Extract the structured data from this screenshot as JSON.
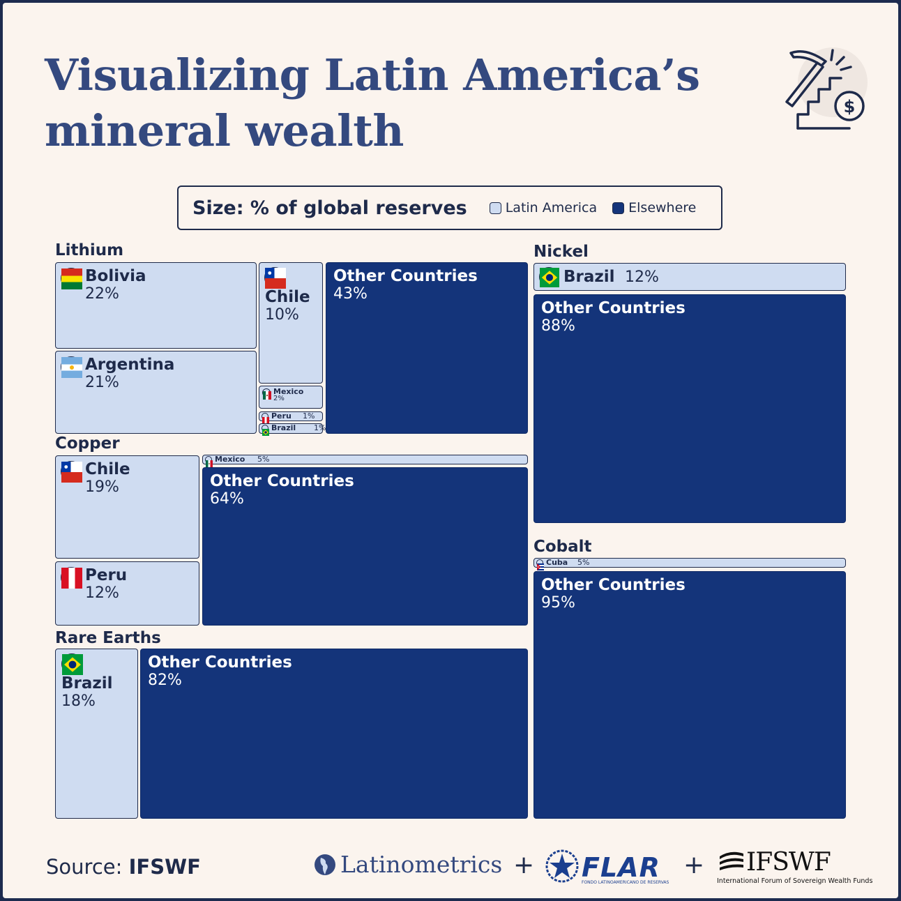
{
  "header": {
    "title_line1": "Visualizing Latin America’s",
    "title_line2": "mineral wealth"
  },
  "legend": {
    "title": "Size: % of global reserves",
    "items": [
      {
        "label": "Latin America",
        "color": "#cfdcf1"
      },
      {
        "label": "Elsewhere",
        "color": "#14347a"
      }
    ]
  },
  "colors": {
    "latin_america": "#cfdcf1",
    "elsewhere": "#14347a",
    "text_dark": "#1e2a4a",
    "title": "#34497f",
    "background": "#fbf4ee"
  },
  "chart_data": {
    "type": "treemap",
    "unit": "% of global reserves",
    "minerals": [
      {
        "name": "Lithium",
        "segments": [
          {
            "country": "Bolivia",
            "value": 22,
            "pct_label": "22%",
            "group": "Latin America",
            "flag": "bolivia"
          },
          {
            "country": "Argentina",
            "value": 21,
            "pct_label": "21%",
            "group": "Latin America",
            "flag": "argentina"
          },
          {
            "country": "Chile",
            "value": 10,
            "pct_label": "10%",
            "group": "Latin America",
            "flag": "chile"
          },
          {
            "country": "Mexico",
            "value": 2,
            "pct_label": "2%",
            "group": "Latin America",
            "flag": "mexico"
          },
          {
            "country": "Peru",
            "value": 1,
            "pct_label": "1%",
            "group": "Latin America",
            "flag": "peru"
          },
          {
            "country": "Brazil",
            "value": 1,
            "pct_label": "1%",
            "group": "Latin America",
            "flag": "brazil"
          },
          {
            "country": "Other Countries",
            "value": 43,
            "pct_label": "43%",
            "group": "Elsewhere"
          }
        ]
      },
      {
        "name": "Copper",
        "segments": [
          {
            "country": "Chile",
            "value": 19,
            "pct_label": "19%",
            "group": "Latin America",
            "flag": "chile"
          },
          {
            "country": "Peru",
            "value": 12,
            "pct_label": "12%",
            "group": "Latin America",
            "flag": "peru"
          },
          {
            "country": "Mexico",
            "value": 5,
            "pct_label": "5%",
            "group": "Latin America",
            "flag": "mexico"
          },
          {
            "country": "Other Countries",
            "value": 64,
            "pct_label": "64%",
            "group": "Elsewhere"
          }
        ]
      },
      {
        "name": "Rare Earths",
        "segments": [
          {
            "country": "Brazil",
            "value": 18,
            "pct_label": "18%",
            "group": "Latin America",
            "flag": "brazil"
          },
          {
            "country": "Other Countries",
            "value": 82,
            "pct_label": "82%",
            "group": "Elsewhere"
          }
        ]
      },
      {
        "name": "Nickel",
        "segments": [
          {
            "country": "Brazil",
            "value": 12,
            "pct_label": "12%",
            "group": "Latin America",
            "flag": "brazil"
          },
          {
            "country": "Other Countries",
            "value": 88,
            "pct_label": "88%",
            "group": "Elsewhere"
          }
        ]
      },
      {
        "name": "Cobalt",
        "segments": [
          {
            "country": "Cuba",
            "value": 5,
            "pct_label": "5%",
            "group": "Latin America",
            "flag": "cuba"
          },
          {
            "country": "Other Countries",
            "value": 95,
            "pct_label": "95%",
            "group": "Elsewhere"
          }
        ]
      }
    ]
  },
  "footer": {
    "source_prefix": "Source: ",
    "source_name": "IFSWF",
    "logo_latinometrics": "Latinometrics",
    "plus": "+",
    "logo_flar": "FLAR",
    "logo_flar_sub": "FONDO LATINOAMERICANO DE RESERVAS",
    "logo_ifswf": "IFSWF",
    "logo_ifswf_sub": "International Forum of Sovereign Wealth Funds",
    "icon": "mining-pickaxe-dollar-icon"
  }
}
